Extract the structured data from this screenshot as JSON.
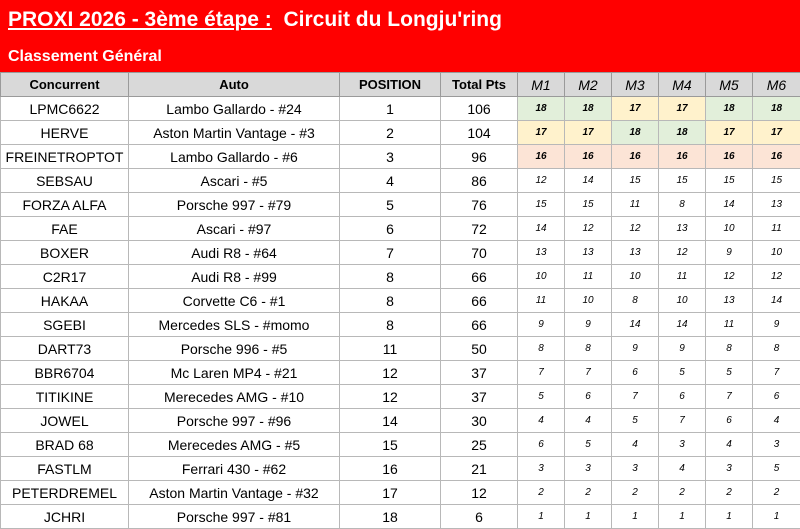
{
  "header": {
    "title_part1": "PROXI 2026 - 3ème étape :",
    "title_part2": "Circuit du Longju'ring",
    "subtitle": "Classement Général"
  },
  "columns": [
    "Concurrent",
    "Auto",
    "POSITION",
    "Total Pts",
    "M1",
    "M2",
    "M3",
    "M4",
    "M5",
    "M6"
  ],
  "rows": [
    {
      "concurrent": "LPMC6622",
      "auto": "Lambo Gallardo - #24",
      "position": "1",
      "total": "106",
      "m": [
        "18",
        "18",
        "17",
        "17",
        "18",
        "18"
      ]
    },
    {
      "concurrent": "HERVE",
      "auto": "Aston Martin Vantage - #3",
      "position": "2",
      "total": "104",
      "m": [
        "17",
        "17",
        "18",
        "18",
        "17",
        "17"
      ]
    },
    {
      "concurrent": "FREINETROPTOT",
      "auto": "Lambo Gallardo - #6",
      "position": "3",
      "total": "96",
      "m": [
        "16",
        "16",
        "16",
        "16",
        "16",
        "16"
      ]
    },
    {
      "concurrent": "SEBSAU",
      "auto": "Ascari - #5",
      "position": "4",
      "total": "86",
      "m": [
        "12",
        "14",
        "15",
        "15",
        "15",
        "15"
      ]
    },
    {
      "concurrent": "FORZA ALFA",
      "auto": "Porsche 997 - #79",
      "position": "5",
      "total": "76",
      "m": [
        "15",
        "15",
        "11",
        "8",
        "14",
        "13"
      ]
    },
    {
      "concurrent": "FAE",
      "auto": "Ascari - #97",
      "position": "6",
      "total": "72",
      "m": [
        "14",
        "12",
        "12",
        "13",
        "10",
        "11"
      ]
    },
    {
      "concurrent": "BOXER",
      "auto": "Audi R8 - #64",
      "position": "7",
      "total": "70",
      "m": [
        "13",
        "13",
        "13",
        "12",
        "9",
        "10"
      ]
    },
    {
      "concurrent": "C2R17",
      "auto": "Audi R8 - #99",
      "position": "8",
      "total": "66",
      "m": [
        "10",
        "11",
        "10",
        "11",
        "12",
        "12"
      ]
    },
    {
      "concurrent": "HAKAA",
      "auto": "Corvette C6 - #1",
      "position": "8",
      "total": "66",
      "m": [
        "11",
        "10",
        "8",
        "10",
        "13",
        "14"
      ]
    },
    {
      "concurrent": "SGEBI",
      "auto": "Mercedes SLS - #momo",
      "position": "8",
      "total": "66",
      "m": [
        "9",
        "9",
        "14",
        "14",
        "11",
        "9"
      ]
    },
    {
      "concurrent": "DART73",
      "auto": "Porsche 996 - #5",
      "position": "11",
      "total": "50",
      "m": [
        "8",
        "8",
        "9",
        "9",
        "8",
        "8"
      ]
    },
    {
      "concurrent": "BBR6704",
      "auto": "Mc Laren MP4 - #21",
      "position": "12",
      "total": "37",
      "m": [
        "7",
        "7",
        "6",
        "5",
        "5",
        "7"
      ]
    },
    {
      "concurrent": "TITIKINE",
      "auto": "Merecedes AMG - #10",
      "position": "12",
      "total": "37",
      "m": [
        "5",
        "6",
        "7",
        "6",
        "7",
        "6"
      ]
    },
    {
      "concurrent": "JOWEL",
      "auto": "Porsche 997 - #96",
      "position": "14",
      "total": "30",
      "m": [
        "4",
        "4",
        "5",
        "7",
        "6",
        "4"
      ]
    },
    {
      "concurrent": "BRAD 68",
      "auto": "Merecedes AMG - #5",
      "position": "15",
      "total": "25",
      "m": [
        "6",
        "5",
        "4",
        "3",
        "4",
        "3"
      ]
    },
    {
      "concurrent": "FASTLM",
      "auto": "Ferrari 430 - #62",
      "position": "16",
      "total": "21",
      "m": [
        "3",
        "3",
        "3",
        "4",
        "3",
        "5"
      ]
    },
    {
      "concurrent": "PETERDREMEL",
      "auto": "Aston Martin Vantage - #32",
      "position": "17",
      "total": "12",
      "m": [
        "2",
        "2",
        "2",
        "2",
        "2",
        "2"
      ]
    },
    {
      "concurrent": "JCHRI",
      "auto": "Porsche 997 - #81",
      "position": "18",
      "total": "6",
      "m": [
        "1",
        "1",
        "1",
        "1",
        "1",
        "1"
      ]
    }
  ],
  "colors": {
    "title_bg": "#ff0000",
    "header_bg": "#d9d9d9",
    "highlight_green": "#e2efda",
    "highlight_yellow": "#fff2cc",
    "highlight_orange": "#fce4d6"
  }
}
